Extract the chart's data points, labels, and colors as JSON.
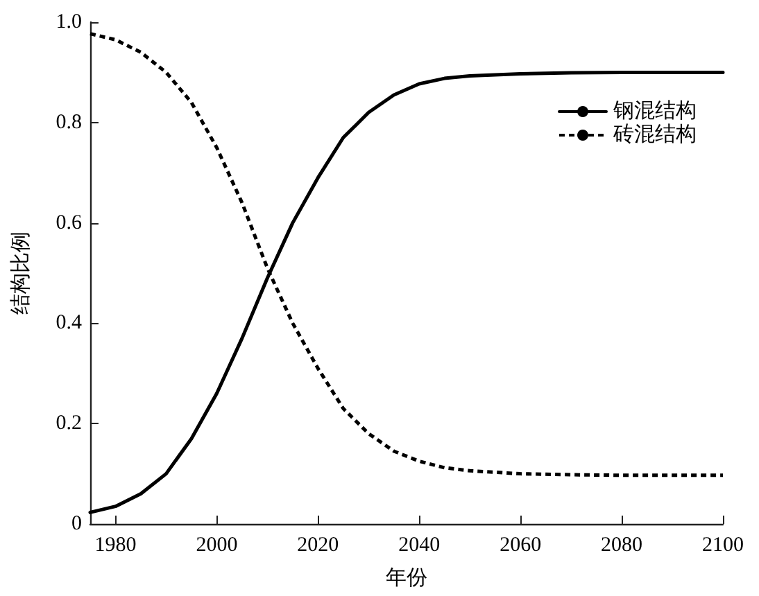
{
  "chart_data": {
    "type": "line",
    "xlabel": "年份",
    "ylabel": "结构比例",
    "xlim": [
      1975,
      2100
    ],
    "xticks": [
      1980,
      2000,
      2020,
      2040,
      2060,
      2080,
      2100
    ],
    "ylim": [
      0,
      1
    ],
    "yticks": [
      0,
      0.2,
      0.4,
      0.6,
      0.8,
      {
        "value": 1,
        "label": "1.0"
      }
    ],
    "grid": false,
    "legend": "top right",
    "marker": "none",
    "series": [
      {
        "name": "钢混结构",
        "color": "#000000",
        "line_style": "solid",
        "x": [
          1975,
          1980,
          1985,
          1990,
          1995,
          2000,
          2005,
          2010,
          2015,
          2020,
          2025,
          2030,
          2035,
          2040,
          2045,
          2050,
          2060,
          2070,
          2080,
          2090,
          2100
        ],
        "values": [
          0.023,
          0.035,
          0.06,
          0.1,
          0.17,
          0.26,
          0.37,
          0.49,
          0.6,
          0.69,
          0.77,
          0.82,
          0.855,
          0.877,
          0.888,
          0.893,
          0.897,
          0.899,
          0.9,
          0.9,
          0.9
        ]
      },
      {
        "name": "砖混结构",
        "color": "#000000",
        "line_style": "dashed",
        "x": [
          1975,
          1980,
          1985,
          1990,
          1995,
          2000,
          2005,
          2010,
          2015,
          2020,
          2025,
          2030,
          2035,
          2040,
          2045,
          2050,
          2060,
          2070,
          2080,
          2090,
          2100
        ],
        "values": [
          0.977,
          0.965,
          0.94,
          0.9,
          0.84,
          0.75,
          0.64,
          0.51,
          0.4,
          0.31,
          0.23,
          0.18,
          0.145,
          0.125,
          0.112,
          0.106,
          0.1,
          0.098,
          0.097,
          0.097,
          0.097
        ]
      }
    ]
  }
}
